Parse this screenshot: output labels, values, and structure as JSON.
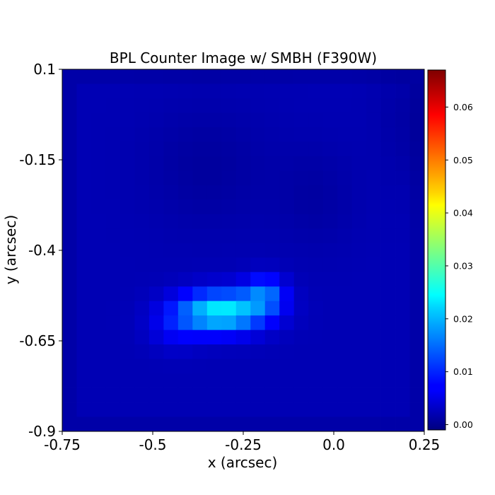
{
  "chart_data": {
    "type": "heatmap",
    "title": "BPL Counter Image w/ SMBH (F390W)",
    "xlabel": "x (arcsec)",
    "ylabel": "y (arcsec)",
    "xlim": [
      -0.75,
      0.25
    ],
    "ylim": [
      -0.9,
      0.1
    ],
    "x_ticks": [
      "-0.75",
      "-0.5",
      "-0.25",
      "0.0",
      "0.25"
    ],
    "y_ticks": [
      "0.1",
      "-0.15",
      "-0.4",
      "-0.65",
      "-0.9"
    ],
    "colormap": "jet",
    "colorbar": {
      "range": [
        -0.001,
        0.067
      ],
      "ticks": [
        "0.00",
        "0.01",
        "0.02",
        "0.03",
        "0.04",
        "0.05",
        "0.06"
      ]
    },
    "grid_size": [
      25,
      25
    ],
    "blob": {
      "components": [
        {
          "x": -0.31,
          "y": -0.57,
          "sx": 0.085,
          "sy": 0.04,
          "peak": 0.0215
        },
        {
          "x": -0.19,
          "y": -0.52,
          "sx": 0.04,
          "sy": 0.035,
          "peak": 0.0105
        },
        {
          "x": -0.44,
          "y": -0.62,
          "sx": 0.05,
          "sy": 0.04,
          "peak": 0.0035
        }
      ],
      "background": 0.0025,
      "dark_regions": [
        {
          "x": -0.35,
          "y": -0.17,
          "sx": 0.12,
          "sy": 0.12,
          "depth": 0.0015
        },
        {
          "x": -0.05,
          "y": -0.25,
          "sx": 0.08,
          "sy": 0.1,
          "depth": 0.0012
        },
        {
          "x": 0.2,
          "y": -0.05,
          "sx": 0.06,
          "sy": 0.12,
          "depth": 0.001
        }
      ]
    }
  }
}
